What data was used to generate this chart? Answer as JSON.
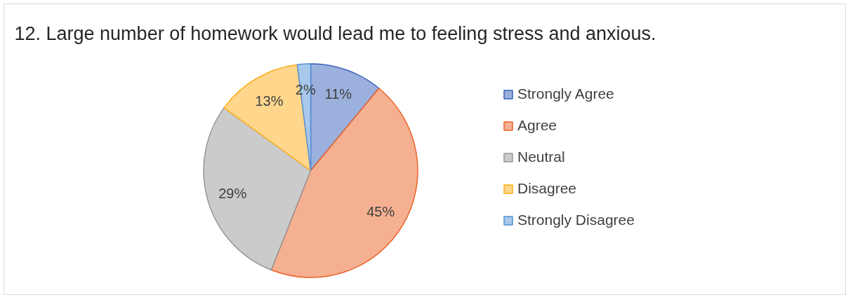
{
  "chart_data": {
    "type": "pie",
    "title": "12. Large number of homework would lead me to feeling stress and anxious.",
    "categories": [
      "Strongly Agree",
      "Agree",
      "Neutral",
      "Disagree",
      "Strongly Disagree"
    ],
    "values": [
      11,
      45,
      29,
      13,
      2
    ],
    "colors": [
      "#9cb0dd",
      "#f5b092",
      "#cbcbcb",
      "#fed68c",
      "#a9c8ea"
    ],
    "value_labels": [
      "11%",
      "45%",
      "29%",
      "13%",
      "2%"
    ],
    "legend": "right"
  }
}
